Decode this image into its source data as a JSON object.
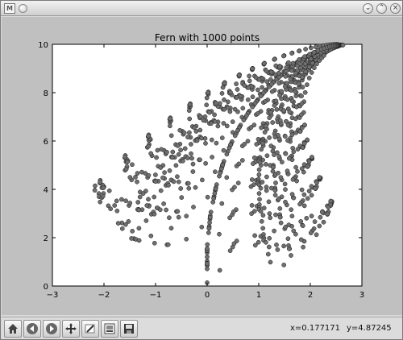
{
  "window": {
    "icon_text": "M",
    "buttons": [
      "minimize",
      "maximize",
      "close"
    ]
  },
  "chart_data": {
    "type": "scatter",
    "title": "Fern with 1000 points",
    "xlabel": "",
    "ylabel": "",
    "xlim": [
      -3,
      3
    ],
    "ylim": [
      0,
      10
    ],
    "xticks": [
      -3,
      -2,
      -1,
      0,
      1,
      2,
      3
    ],
    "yticks": [
      0,
      2,
      4,
      6,
      8,
      10
    ],
    "grid": false,
    "marker_color": "#6f6f6f",
    "n_points": 1000,
    "seed": 1
  },
  "toolbar": {
    "items": [
      "home-icon",
      "back-icon",
      "forward-icon",
      "pan-icon",
      "zoom-icon",
      "subplots-icon",
      "save-icon"
    ]
  },
  "status": {
    "x_readout": "x=0.177171",
    "y_readout": "y=4.87245"
  },
  "colors": {
    "window_bg": "#c0c0c0",
    "plot_bg": "#ffffff",
    "marker": "#6f6f6f"
  }
}
